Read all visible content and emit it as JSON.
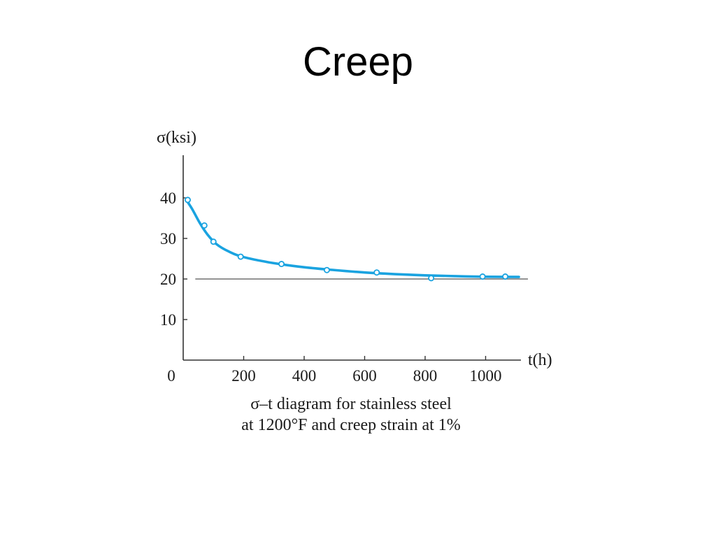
{
  "slide": {
    "title": "Creep"
  },
  "chart_data": {
    "type": "line",
    "title": "",
    "caption": [
      "σ–t diagram for stainless steel",
      "at 1200°F and creep strain at 1%"
    ],
    "ylabel": "σ(ksi)",
    "xlabel": "t(h)",
    "xlim": [
      0,
      1100
    ],
    "ylim": [
      0,
      50
    ],
    "x_ticks": [
      {
        "value": 0,
        "label": "0"
      },
      {
        "value": 200,
        "label": "200"
      },
      {
        "value": 400,
        "label": "400"
      },
      {
        "value": 600,
        "label": "600"
      },
      {
        "value": 800,
        "label": "800"
      },
      {
        "value": 1000,
        "label": "1000"
      }
    ],
    "y_ticks": [
      {
        "value": 10,
        "label": "10"
      },
      {
        "value": 20,
        "label": "20"
      },
      {
        "value": 30,
        "label": "30"
      },
      {
        "value": 40,
        "label": "40"
      }
    ],
    "reference_line": {
      "y": 20,
      "x_range": [
        40,
        1140
      ]
    },
    "series": [
      {
        "points": [
          {
            "x": 15,
            "y": 39.5
          },
          {
            "x": 70,
            "y": 33.2
          },
          {
            "x": 100,
            "y": 29.2
          },
          {
            "x": 190,
            "y": 25.5
          },
          {
            "x": 325,
            "y": 23.7
          },
          {
            "x": 475,
            "y": 22.2
          },
          {
            "x": 640,
            "y": 21.6
          },
          {
            "x": 820,
            "y": 20.2
          },
          {
            "x": 990,
            "y": 20.6
          },
          {
            "x": 1065,
            "y": 20.6
          }
        ],
        "curve": [
          {
            "x": 10,
            "y": 39.5
          },
          {
            "x": 30,
            "y": 37.2
          },
          {
            "x": 55,
            "y": 33.8
          },
          {
            "x": 80,
            "y": 31.0
          },
          {
            "x": 110,
            "y": 28.6
          },
          {
            "x": 150,
            "y": 26.8
          },
          {
            "x": 200,
            "y": 25.4
          },
          {
            "x": 300,
            "y": 23.9
          },
          {
            "x": 400,
            "y": 22.9
          },
          {
            "x": 500,
            "y": 22.2
          },
          {
            "x": 600,
            "y": 21.6
          },
          {
            "x": 700,
            "y": 21.2
          },
          {
            "x": 800,
            "y": 20.9
          },
          {
            "x": 900,
            "y": 20.7
          },
          {
            "x": 1000,
            "y": 20.55
          },
          {
            "x": 1110,
            "y": 20.5
          }
        ]
      }
    ],
    "colors": {
      "curve": "#1aa3e0",
      "axes": "#333333",
      "reference": "#555555"
    },
    "grid": false
  }
}
